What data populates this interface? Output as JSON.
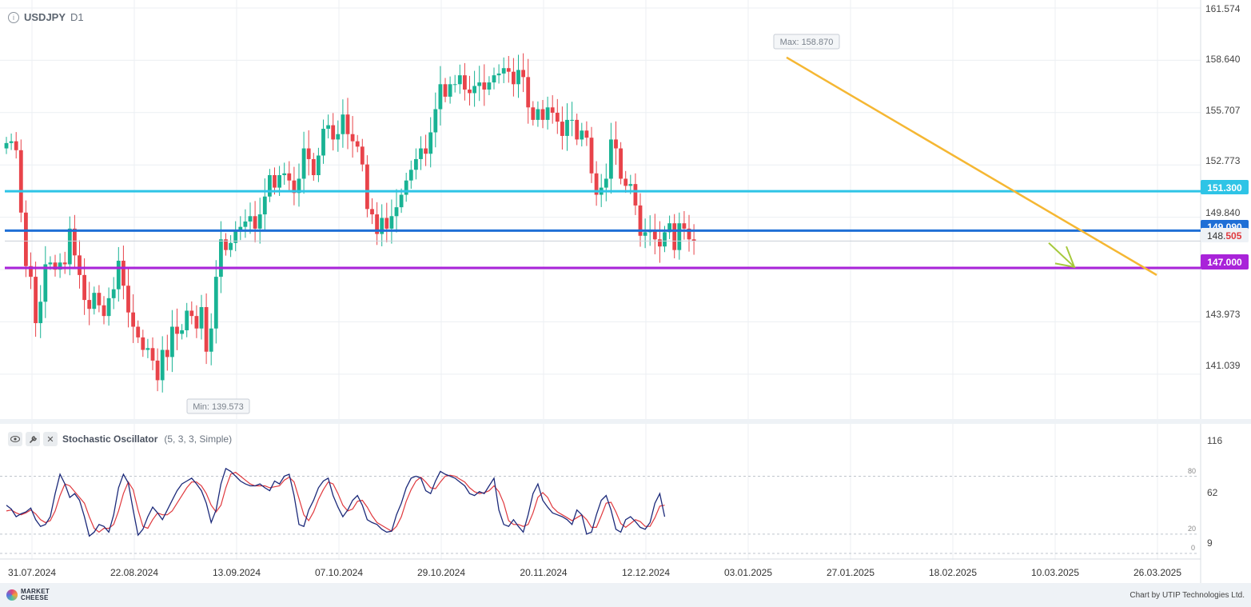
{
  "header": {
    "symbol": "USDJPY",
    "timeframe": "D1"
  },
  "chart_data": [
    {
      "type": "candlestick",
      "symbol": "USDJPY",
      "timeframe": "D1",
      "x_tick_labels": [
        "31.07.2024",
        "22.08.2024",
        "13.09.2024",
        "07.10.2024",
        "29.10.2024",
        "20.11.2024",
        "12.12.2024",
        "03.01.2025",
        "27.01.2025",
        "18.02.2025",
        "10.03.2025",
        "26.03.2025"
      ],
      "y_tick_labels": [
        "161.574",
        "158.640",
        "155.707",
        "152.773",
        "149.840",
        "143.973",
        "141.039"
      ],
      "ylim": [
        138.7,
        161.574
      ],
      "grid": true,
      "price_labels": {
        "line_151": "151.300",
        "line_149": "149.090",
        "current_int": "148.",
        "current_frac": "505",
        "line_147": "147.000"
      },
      "annotations": {
        "max": "Max: 158.870",
        "min": "Min: 139.573"
      },
      "levels": [
        {
          "value": 151.3,
          "color": "#2ec4e6"
        },
        {
          "value": 149.09,
          "color": "#1f6fd6"
        },
        {
          "value": 147.0,
          "color": "#a923d9"
        }
      ],
      "trendline": {
        "from": [
          "2025-01-13",
          158.8
        ],
        "to": [
          "2025-03-26",
          146.6
        ],
        "color": "#f5b733"
      },
      "forecast_arrow": {
        "color": "#a6c93c"
      },
      "closes": [
        154.0,
        154.1,
        153.6,
        150.1,
        147.1,
        146.5,
        143.9,
        145.1,
        147.2,
        147.3,
        146.9,
        147.3,
        147.2,
        149.2,
        147.7,
        146.6,
        145.2,
        144.7,
        145.6,
        144.9,
        144.3,
        145.3,
        145.8,
        147.4,
        146.0,
        144.5,
        143.7,
        143.1,
        142.4,
        142.5,
        141.8,
        140.7,
        142.4,
        142.0,
        143.7,
        143.3,
        143.5,
        144.6,
        144.3,
        143.6,
        144.8,
        142.3,
        143.6,
        146.5,
        148.6,
        148.0,
        148.4,
        149.1,
        149.3,
        149.6,
        149.9,
        149.2,
        150.0,
        151.0,
        152.2,
        151.5,
        152.2,
        152.3,
        151.9,
        151.2,
        152.0,
        153.7,
        153.1,
        152.2,
        153.3,
        154.8,
        155.0,
        154.2,
        154.5,
        155.6,
        154.5,
        154.1,
        153.8,
        152.8,
        150.3,
        150.0,
        148.9,
        149.8,
        149.2,
        149.9,
        150.4,
        151.1,
        151.9,
        152.5,
        153.1,
        153.7,
        153.4,
        154.6,
        155.9,
        157.3,
        156.6,
        157.3,
        157.3,
        157.8,
        157.0,
        156.8,
        157.2,
        157.4,
        157.0,
        157.4,
        157.8,
        157.9,
        158.2,
        158.0,
        157.3,
        158.1,
        157.7,
        156.0,
        155.3,
        155.9,
        155.3,
        156.0,
        155.7,
        155.2,
        154.4,
        155.3,
        155.3,
        154.2,
        154.7,
        154.3,
        152.3,
        151.1,
        151.5,
        152.0,
        154.2,
        153.7,
        152.0,
        151.6,
        151.7,
        150.5,
        148.8,
        149.0,
        149.1,
        148.6,
        148.2,
        149.0,
        149.5,
        148.0,
        149.5,
        149.2,
        148.6,
        148.5
      ],
      "stochastic": {
        "name": "Stochastic Oscillator",
        "params": "(5, 3, 3, Simple)",
        "y_tick_labels": [
          "116",
          "62",
          "9"
        ],
        "levels": {
          "80": "80",
          "20": "20",
          "0": "0"
        },
        "k": [
          50,
          46,
          38,
          41,
          43,
          47,
          35,
          28,
          30,
          38,
          62,
          82,
          72,
          58,
          62,
          55,
          38,
          18,
          22,
          30,
          28,
          22,
          40,
          68,
          82,
          73,
          45,
          19,
          25,
          38,
          48,
          42,
          35,
          45,
          55,
          65,
          72,
          75,
          78,
          72,
          65,
          52,
          32,
          45,
          72,
          88,
          85,
          80,
          75,
          72,
          70,
          70,
          72,
          68,
          65,
          75,
          72,
          80,
          82,
          60,
          30,
          28,
          45,
          55,
          68,
          75,
          78,
          60,
          48,
          38,
          45,
          55,
          60,
          50,
          35,
          32,
          30,
          25,
          22,
          23,
          40,
          52,
          68,
          78,
          80,
          78,
          65,
          62,
          75,
          85,
          82,
          80,
          78,
          74,
          70,
          62,
          60,
          64,
          62,
          70,
          78,
          45,
          30,
          28,
          35,
          28,
          22,
          40,
          62,
          72,
          55,
          48,
          42,
          40,
          38,
          35,
          30,
          45,
          40,
          20,
          22,
          40,
          55,
          60,
          45,
          25,
          22,
          35,
          38,
          33,
          27,
          25,
          32,
          52,
          62,
          38
        ],
        "d": [
          44,
          45,
          42,
          40,
          42,
          45,
          41,
          35,
          32,
          34,
          44,
          60,
          72,
          70,
          64,
          58,
          52,
          38,
          26,
          22,
          26,
          26,
          30,
          44,
          62,
          74,
          66,
          45,
          28,
          26,
          35,
          42,
          40,
          40,
          44,
          52,
          60,
          68,
          74,
          74,
          70,
          62,
          50,
          43,
          50,
          68,
          82,
          84,
          80,
          76,
          72,
          70,
          70,
          70,
          68,
          69,
          70,
          76,
          79,
          74,
          57,
          40,
          34,
          43,
          56,
          66,
          74,
          72,
          62,
          50,
          44,
          46,
          54,
          55,
          48,
          39,
          32,
          29,
          26,
          23,
          28,
          38,
          54,
          66,
          75,
          79,
          74,
          68,
          67,
          74,
          80,
          81,
          80,
          77,
          74,
          68,
          64,
          62,
          63,
          65,
          70,
          64,
          52,
          34,
          30,
          30,
          28,
          30,
          42,
          58,
          63,
          58,
          48,
          43,
          40,
          37,
          34,
          37,
          40,
          35,
          27,
          27,
          39,
          52,
          53,
          43,
          31,
          27,
          31,
          35,
          33,
          28,
          28,
          37,
          49,
          50
        ]
      }
    }
  ],
  "footer": {
    "brand_line1": "MARKET",
    "brand_line2": "CHEESE",
    "credit": "Chart by UTIP Technologies Ltd."
  }
}
